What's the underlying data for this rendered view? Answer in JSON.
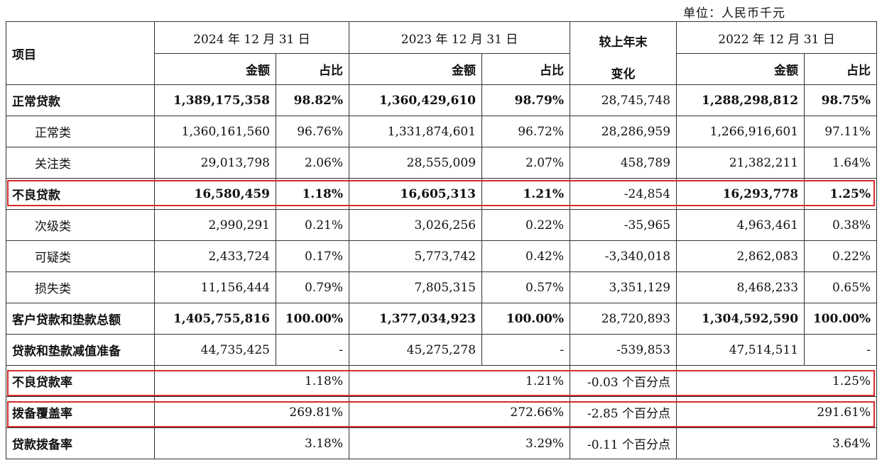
{
  "unit_label": "单位：人民币千元",
  "headers": {
    "item": "项目",
    "periods": [
      "2024 年 12 月 31 日",
      "2023 年 12 月 31 日",
      "2022 年 12 月 31 日"
    ],
    "amount": "金额",
    "ratio": "占比",
    "change_line1": "较上年末",
    "change_line2": "变化"
  },
  "rows": [
    {
      "label": "正常贷款",
      "a2024": "1,389,175,358",
      "r2024": "98.82%",
      "a2023": "1,360,429,610",
      "r2023": "98.79%",
      "chg": "28,745,748",
      "a2022": "1,288,298,812",
      "r2022": "98.75%"
    },
    {
      "label": "正常类",
      "a2024": "1,360,161,560",
      "r2024": "96.76%",
      "a2023": "1,331,874,601",
      "r2023": "96.72%",
      "chg": "28,286,959",
      "a2022": "1,266,916,601",
      "r2022": "97.11%"
    },
    {
      "label": "关注类",
      "a2024": "29,013,798",
      "r2024": "2.06%",
      "a2023": "28,555,009",
      "r2023": "2.07%",
      "chg": "458,789",
      "a2022": "21,382,211",
      "r2022": "1.64%"
    },
    {
      "label": "不良贷款",
      "a2024": "16,580,459",
      "r2024": "1.18%",
      "a2023": "16,605,313",
      "r2023": "1.21%",
      "chg": "-24,854",
      "a2022": "16,293,778",
      "r2022": "1.25%"
    },
    {
      "label": "次级类",
      "a2024": "2,990,291",
      "r2024": "0.21%",
      "a2023": "3,026,256",
      "r2023": "0.22%",
      "chg": "-35,965",
      "a2022": "4,963,461",
      "r2022": "0.38%"
    },
    {
      "label": "可疑类",
      "a2024": "2,433,724",
      "r2024": "0.17%",
      "a2023": "5,773,742",
      "r2023": "0.42%",
      "chg": "-3,340,018",
      "a2022": "2,862,083",
      "r2022": "0.22%"
    },
    {
      "label": "损失类",
      "a2024": "11,156,444",
      "r2024": "0.79%",
      "a2023": "7,805,315",
      "r2023": "0.57%",
      "chg": "3,351,129",
      "a2022": "8,468,233",
      "r2022": "0.65%"
    },
    {
      "label": "客户贷款和垫款总额",
      "a2024": "1,405,755,816",
      "r2024": "100.00%",
      "a2023": "1,377,034,923",
      "r2023": "100.00%",
      "chg": "28,720,893",
      "a2022": "1,304,592,590",
      "r2022": "100.00%"
    },
    {
      "label": "贷款和垫款减值准备",
      "a2024": "44,735,425",
      "r2024": "-",
      "a2023": "45,275,278",
      "r2023": "-",
      "chg": "-539,853",
      "a2022": "47,514,511",
      "r2022": "-"
    },
    {
      "label": "不良贷款率",
      "v2024": "1.18%",
      "v2023": "1.21%",
      "chg": "-0.03 个百分点",
      "v2022": "1.25%"
    },
    {
      "label": "拨备覆盖率",
      "v2024": "269.81%",
      "v2023": "272.66%",
      "chg": "-2.85 个百分点",
      "v2022": "291.61%"
    },
    {
      "label": "贷款拨备率",
      "v2024": "3.18%",
      "v2023": "3.29%",
      "chg": "-0.11 个百分点",
      "v2022": "3.64%"
    }
  ],
  "highlight_color": "#d62b2b"
}
